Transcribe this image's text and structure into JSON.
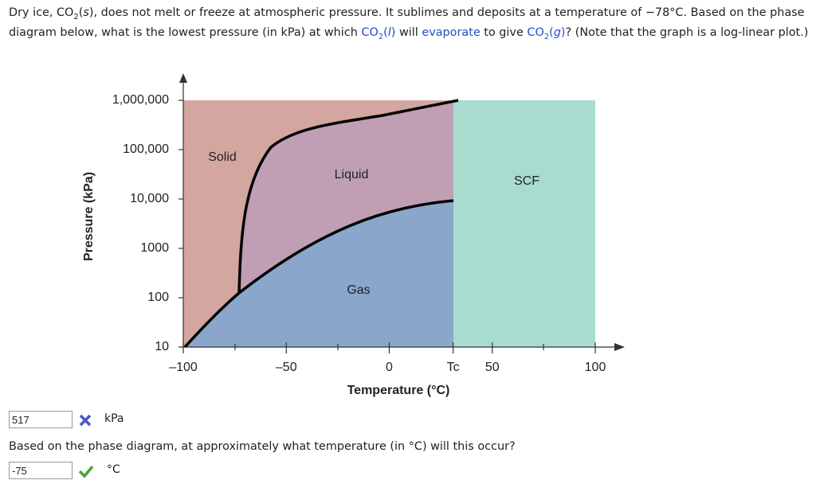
{
  "question": {
    "segments": [
      "Dry ice, CO",
      "2",
      "(",
      "s",
      "), does not melt or freeze at atmospheric pressure. It sublimes and deposits at a temperature of −78°C. Based on the phase diagram below, what is the lowest pressure (in kPa) at which ",
      "CO",
      "2",
      "(",
      "l",
      ")",
      " will ",
      "evaporate",
      " to give ",
      "CO",
      "2",
      "(",
      "g",
      ")",
      "? (Note that the graph is a log-linear plot.)"
    ]
  },
  "chart_data": {
    "type": "phase-diagram",
    "xlabel": "Temperature (°C)",
    "ylabel": "Pressure (kPa)",
    "ylim": [
      10,
      1000000
    ],
    "log_y": true,
    "yticks": [
      10,
      100,
      1000,
      {
        "value": 10000,
        "label": "10,000"
      },
      {
        "value": 100000,
        "label": "100,000"
      },
      {
        "value": 1000000,
        "label": "1,000,000"
      }
    ],
    "xlim": [
      -100,
      100
    ],
    "xticks": [
      {
        "value": -100,
        "label": "–100"
      },
      {
        "value": -50,
        "label": "–50"
      },
      0,
      {
        "value": 31,
        "label": "Tc"
      },
      50,
      100
    ],
    "regions": [
      "Solid",
      "Liquid",
      "Gas",
      "SCF"
    ]
  },
  "answers": [
    {
      "value": "517",
      "unit": "kPa"
    },
    {
      "question": "Based on the phase diagram, at approximately what temperature (in °C) will this occur?",
      "value": "-75",
      "unit": "°C"
    }
  ]
}
